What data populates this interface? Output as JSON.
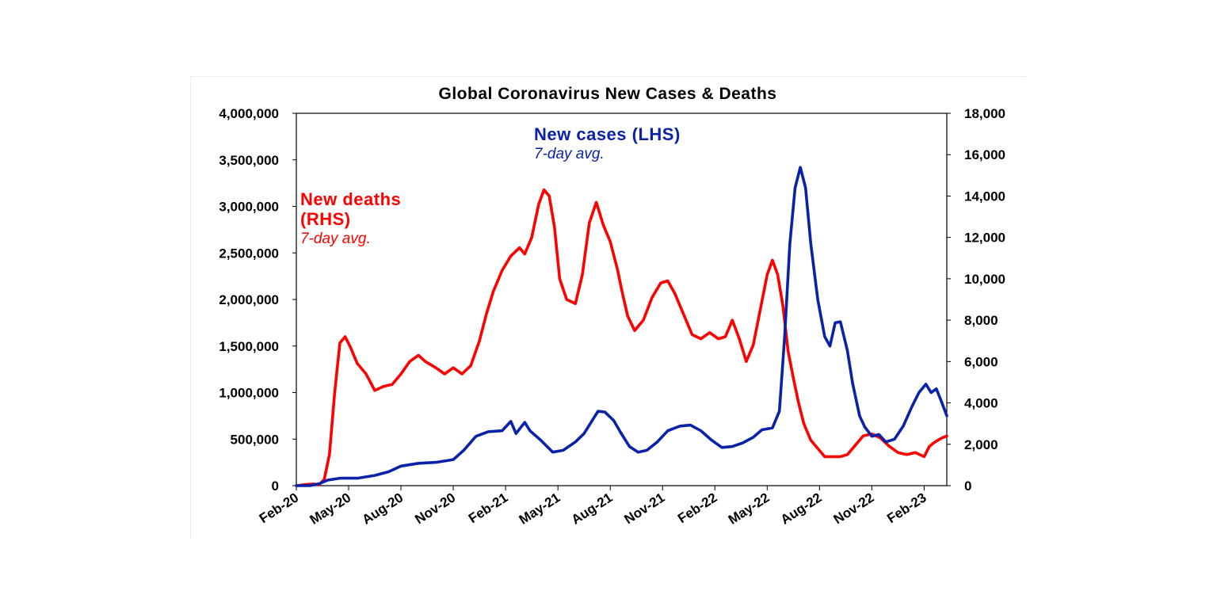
{
  "chart_data": {
    "type": "line",
    "title": "Global Coronavirus New Cases & Deaths",
    "xlabel": "",
    "ylabel_left": "",
    "ylabel_right": "",
    "x_tick_labels": [
      "Feb-20",
      "May-20",
      "Aug-20",
      "Nov-20",
      "Feb-21",
      "May-21",
      "Aug-21",
      "Nov-21",
      "Feb-22",
      "May-22",
      "Aug-22",
      "Nov-22",
      "Feb-23"
    ],
    "y_left": {
      "ylim": [
        0,
        4000000
      ],
      "tick_labels": [
        "0",
        "500,000",
        "1,000,000",
        "1,500,000",
        "2,000,000",
        "2,500,000",
        "3,000,000",
        "3,500,000",
        "4,000,000"
      ]
    },
    "y_right": {
      "ylim": [
        0,
        18000
      ],
      "tick_labels": [
        "0",
        "2,000",
        "4,000",
        "6,000",
        "8,000",
        "10,000",
        "12,000",
        "14,000",
        "16,000",
        "18,000"
      ]
    },
    "x_unit": "months since Feb-20",
    "xlim": [
      0,
      37.3
    ],
    "series": [
      {
        "name": "New cases (LHS)",
        "axis": "left",
        "color": "#0a22a8",
        "points": [
          [
            0,
            0
          ],
          [
            0.8,
            1000
          ],
          [
            1.3,
            20000
          ],
          [
            1.8,
            60000
          ],
          [
            2.5,
            80000
          ],
          [
            3.5,
            80000
          ],
          [
            4.5,
            110000
          ],
          [
            5.3,
            150000
          ],
          [
            6,
            210000
          ],
          [
            7,
            240000
          ],
          [
            8,
            250000
          ],
          [
            9,
            280000
          ],
          [
            9.6,
            380000
          ],
          [
            10.3,
            530000
          ],
          [
            11,
            580000
          ],
          [
            11.8,
            590000
          ],
          [
            12.3,
            690000
          ],
          [
            12.6,
            560000
          ],
          [
            13.1,
            680000
          ],
          [
            13.4,
            590000
          ],
          [
            14,
            490000
          ],
          [
            14.7,
            360000
          ],
          [
            15.3,
            380000
          ],
          [
            16,
            470000
          ],
          [
            16.5,
            560000
          ],
          [
            16.9,
            680000
          ],
          [
            17.3,
            800000
          ],
          [
            17.7,
            790000
          ],
          [
            18.2,
            700000
          ],
          [
            18.6,
            570000
          ],
          [
            19.1,
            420000
          ],
          [
            19.6,
            360000
          ],
          [
            20.1,
            380000
          ],
          [
            20.7,
            470000
          ],
          [
            21.3,
            590000
          ],
          [
            22,
            640000
          ],
          [
            22.6,
            650000
          ],
          [
            23.2,
            590000
          ],
          [
            23.8,
            490000
          ],
          [
            24.4,
            410000
          ],
          [
            25,
            420000
          ],
          [
            25.6,
            460000
          ],
          [
            26.2,
            520000
          ],
          [
            26.7,
            600000
          ],
          [
            27.3,
            620000
          ],
          [
            27.7,
            800000
          ],
          [
            28,
            1600000
          ],
          [
            28.3,
            2600000
          ],
          [
            28.6,
            3200000
          ],
          [
            28.9,
            3420000
          ],
          [
            29.2,
            3200000
          ],
          [
            29.5,
            2600000
          ],
          [
            29.9,
            2000000
          ],
          [
            30.3,
            1600000
          ],
          [
            30.6,
            1500000
          ],
          [
            30.9,
            1750000
          ],
          [
            31.2,
            1760000
          ],
          [
            31.6,
            1450000
          ],
          [
            31.9,
            1100000
          ],
          [
            32.3,
            750000
          ],
          [
            32.6,
            630000
          ],
          [
            33,
            530000
          ],
          [
            33.4,
            550000
          ],
          [
            33.8,
            470000
          ],
          [
            34.3,
            500000
          ],
          [
            34.8,
            640000
          ],
          [
            35.3,
            850000
          ],
          [
            35.7,
            1000000
          ],
          [
            36.1,
            1090000
          ],
          [
            36.4,
            1000000
          ],
          [
            36.7,
            1040000
          ],
          [
            37.0,
            900000
          ],
          [
            37.3,
            750000
          ]
        ]
      },
      {
        "name": "New deaths (RHS)",
        "axis": "right",
        "color": "#ff0000",
        "points": [
          [
            0,
            0
          ],
          [
            0.6,
            60
          ],
          [
            1.0,
            80
          ],
          [
            1.3,
            40
          ],
          [
            1.6,
            300
          ],
          [
            1.9,
            1500
          ],
          [
            2.2,
            4500
          ],
          [
            2.5,
            6900
          ],
          [
            2.8,
            7200
          ],
          [
            3.1,
            6700
          ],
          [
            3.5,
            5900
          ],
          [
            4,
            5400
          ],
          [
            4.5,
            4600
          ],
          [
            5,
            4800
          ],
          [
            5.5,
            4900
          ],
          [
            6,
            5400
          ],
          [
            6.5,
            6000
          ],
          [
            7,
            6300
          ],
          [
            7.4,
            6000
          ],
          [
            8,
            5700
          ],
          [
            8.5,
            5400
          ],
          [
            9,
            5700
          ],
          [
            9.5,
            5400
          ],
          [
            10,
            5800
          ],
          [
            10.5,
            7000
          ],
          [
            10.9,
            8300
          ],
          [
            11.3,
            9400
          ],
          [
            11.8,
            10400
          ],
          [
            12.3,
            11100
          ],
          [
            12.8,
            11500
          ],
          [
            13.1,
            11200
          ],
          [
            13.5,
            12000
          ],
          [
            13.9,
            13600
          ],
          [
            14.2,
            14300
          ],
          [
            14.5,
            14000
          ],
          [
            14.8,
            12500
          ],
          [
            15.1,
            10000
          ],
          [
            15.5,
            9000
          ],
          [
            16,
            8800
          ],
          [
            16.4,
            10200
          ],
          [
            16.8,
            12700
          ],
          [
            17.2,
            13700
          ],
          [
            17.6,
            12600
          ],
          [
            18.0,
            11800
          ],
          [
            18.4,
            10500
          ],
          [
            18.7,
            9300
          ],
          [
            19.0,
            8200
          ],
          [
            19.4,
            7500
          ],
          [
            19.9,
            8000
          ],
          [
            20.4,
            9100
          ],
          [
            20.9,
            9800
          ],
          [
            21.3,
            9900
          ],
          [
            21.7,
            9300
          ],
          [
            22.2,
            8300
          ],
          [
            22.7,
            7300
          ],
          [
            23.2,
            7100
          ],
          [
            23.7,
            7400
          ],
          [
            24.2,
            7100
          ],
          [
            24.6,
            7200
          ],
          [
            25.0,
            8000
          ],
          [
            25.4,
            7100
          ],
          [
            25.8,
            6000
          ],
          [
            26.2,
            6800
          ],
          [
            26.6,
            8500
          ],
          [
            27.0,
            10200
          ],
          [
            27.3,
            10900
          ],
          [
            27.6,
            10200
          ],
          [
            27.9,
            8700
          ],
          [
            28.2,
            6500
          ],
          [
            28.5,
            5200
          ],
          [
            28.8,
            4000
          ],
          [
            29.1,
            3000
          ],
          [
            29.5,
            2200
          ],
          [
            29.9,
            1800
          ],
          [
            30.3,
            1400
          ],
          [
            30.8,
            1400
          ],
          [
            31.2,
            1400
          ],
          [
            31.6,
            1500
          ],
          [
            32.0,
            1900
          ],
          [
            32.5,
            2400
          ],
          [
            33.0,
            2500
          ],
          [
            33.5,
            2300
          ],
          [
            34.0,
            1900
          ],
          [
            34.5,
            1600
          ],
          [
            35.0,
            1500
          ],
          [
            35.5,
            1600
          ],
          [
            36.0,
            1400
          ],
          [
            36.3,
            1900
          ],
          [
            36.6,
            2100
          ],
          [
            37.0,
            2300
          ],
          [
            37.3,
            2400
          ]
        ]
      }
    ],
    "annotations": [
      {
        "text": "New cases (LHS)",
        "color": "#0a22a8",
        "style": "bold"
      },
      {
        "text": "7-day avg.",
        "color": "#0a22a8",
        "style": "italic"
      },
      {
        "text": "New deaths",
        "color": "#ff0000",
        "style": "bold"
      },
      {
        "text": "(RHS)",
        "color": "#ff0000",
        "style": "bold"
      },
      {
        "text": "7-day avg.",
        "color": "#ff0000",
        "style": "italic"
      }
    ],
    "legend": "none",
    "grid": false
  }
}
